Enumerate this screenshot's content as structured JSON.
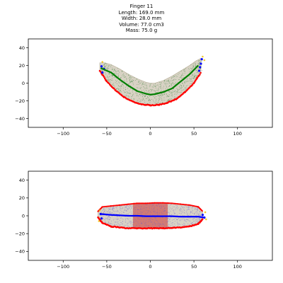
{
  "title_lines": [
    "Finger 11",
    "Length: 169.0 mm",
    "Width: 28.0 mm",
    "Volume: 77.0 cm3",
    "Mass: 75.0 g"
  ],
  "colors": {
    "centerline_top": "#008000",
    "centerline_bottom": "#0000ff",
    "edge_lower": "#ff0000",
    "edge_ends": "#0000ff",
    "top_points": "#2e7d32",
    "body_fill": "#d8d2c4",
    "highlight_band": "#cc3333",
    "end_points": "#f0c000",
    "bottom_points": "#6a5acd"
  },
  "chart_data": [
    {
      "type": "scatter",
      "view": "side",
      "title": "",
      "xlabel": "",
      "ylabel": "",
      "xlim": [
        -140,
        140
      ],
      "ylim": [
        -50,
        50
      ],
      "xticks": [
        -100,
        -50,
        0,
        50,
        100
      ],
      "yticks": [
        40,
        20,
        0,
        -20,
        -40
      ],
      "grid": false,
      "series": [
        {
          "role": "centerline",
          "x": [
            -57,
            -45,
            -35,
            -25,
            -15,
            -5,
            0,
            5,
            15,
            25,
            35,
            45,
            55
          ],
          "y": [
            17,
            12,
            4,
            -3,
            -9,
            -12,
            -13,
            -12.5,
            -10,
            -6,
            2,
            10,
            20
          ]
        },
        {
          "role": "lower-edge",
          "x": [
            -58,
            -50,
            -40,
            -30,
            -20,
            -10,
            0,
            10,
            20,
            30,
            40,
            50,
            58
          ],
          "y": [
            14,
            2,
            -8,
            -16,
            -21,
            -24,
            -25,
            -24.5,
            -22,
            -18,
            -10,
            0,
            12
          ]
        },
        {
          "role": "upper-edge",
          "x": [
            -58,
            -52,
            -45,
            -35,
            -25,
            -15,
            -5,
            0,
            5,
            15,
            25,
            35,
            45,
            52,
            58
          ],
          "y": [
            23,
            23,
            21,
            16,
            10,
            5,
            1,
            0,
            0,
            3,
            8,
            14,
            20,
            25,
            28
          ]
        }
      ]
    },
    {
      "type": "scatter",
      "view": "top",
      "title": "",
      "xlabel": "",
      "ylabel": "",
      "xlim": [
        -140,
        140
      ],
      "ylim": [
        -50,
        50
      ],
      "xticks": [
        -100,
        -50,
        0,
        50,
        100
      ],
      "yticks": [
        40,
        20,
        0,
        -20,
        -40
      ],
      "grid": false,
      "highlight_x_range": [
        -20,
        20
      ],
      "series": [
        {
          "role": "centerline",
          "x": [
            -57,
            -45,
            -35,
            -25,
            -15,
            -5,
            0,
            5,
            15,
            25,
            35,
            45,
            55,
            62
          ],
          "y": [
            2,
            1,
            0.5,
            0,
            0,
            -0.5,
            -0.5,
            -0.5,
            -0.5,
            -0.5,
            -1,
            -1,
            -1,
            -2
          ]
        },
        {
          "role": "lower-edge",
          "x": [
            -60,
            -55,
            -45,
            -35,
            -25,
            -15,
            -5,
            5,
            15,
            25,
            35,
            45,
            55,
            60
          ],
          "y": [
            -2,
            -8,
            -12,
            -13,
            -14,
            -14,
            -14,
            -14,
            -14,
            -13.5,
            -13,
            -12,
            -9,
            -4
          ]
        },
        {
          "role": "upper-edge",
          "x": [
            -60,
            -55,
            -45,
            -35,
            -25,
            -15,
            -5,
            5,
            15,
            25,
            35,
            45,
            55,
            60
          ],
          "y": [
            5,
            10,
            11,
            12,
            13,
            14,
            14,
            14.5,
            14.5,
            14,
            13,
            12,
            10,
            5
          ]
        }
      ]
    }
  ]
}
